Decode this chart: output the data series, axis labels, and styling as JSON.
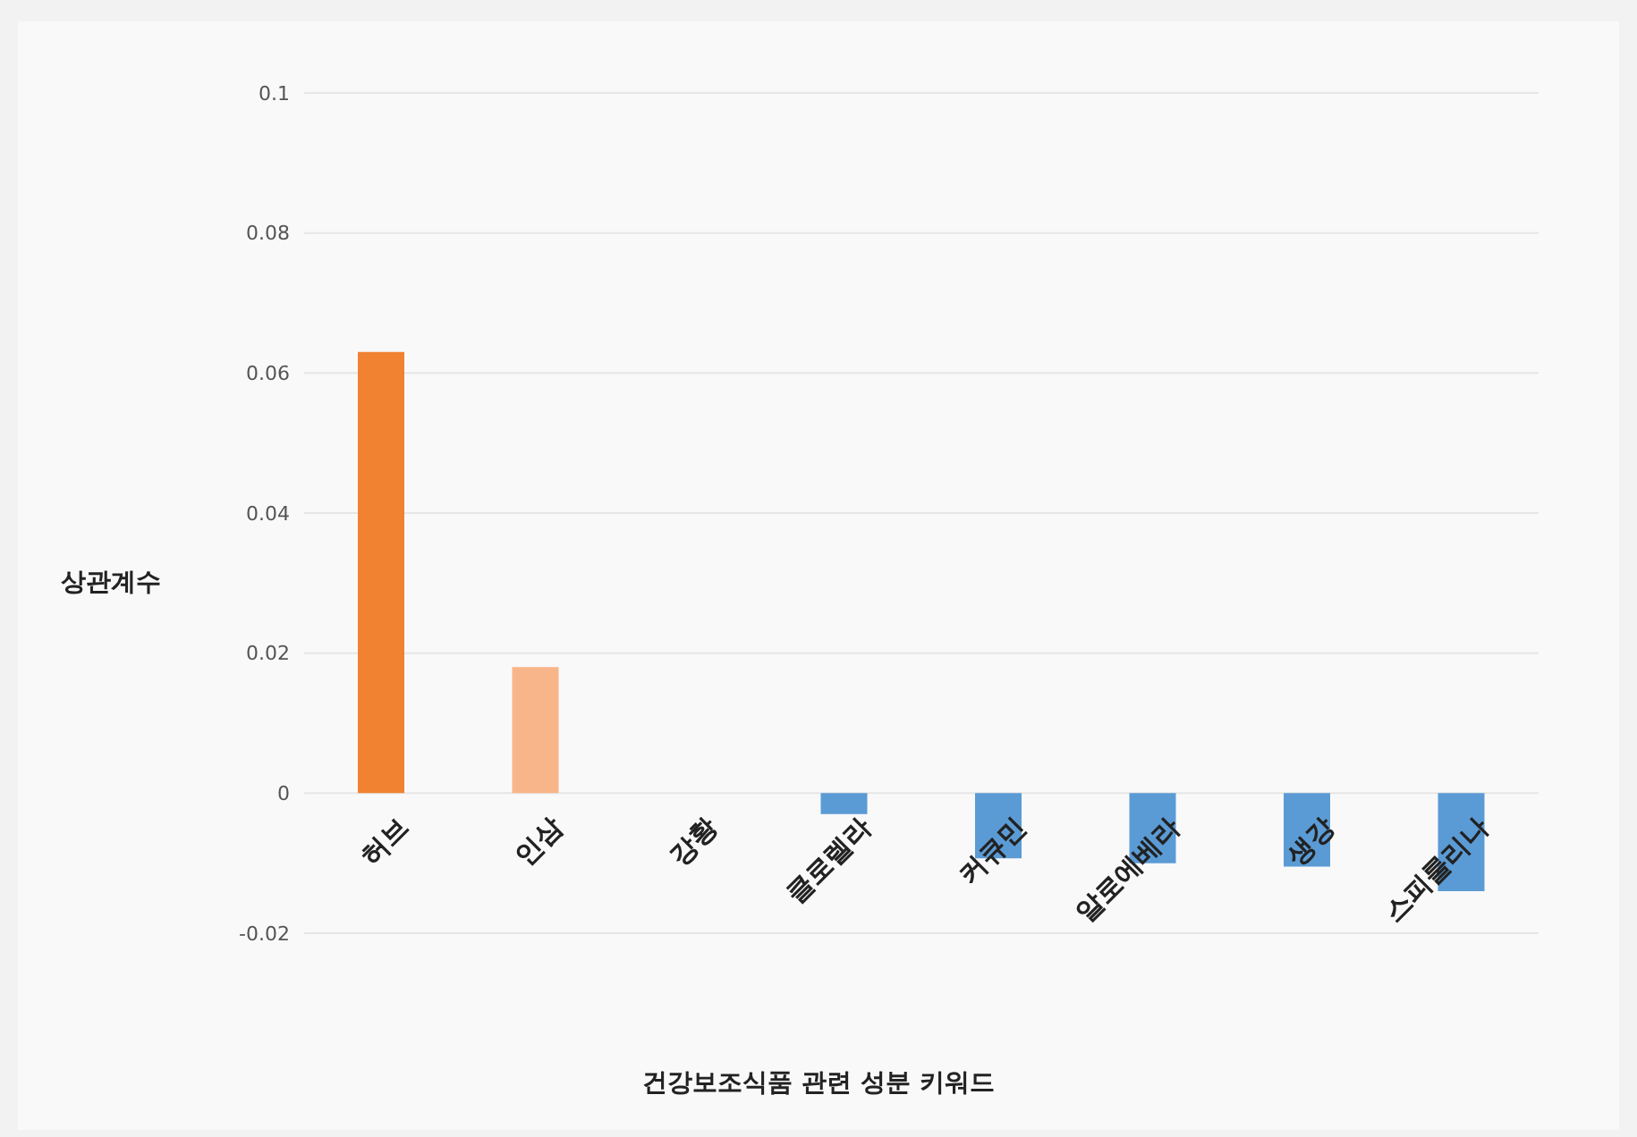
{
  "chart_data": {
    "type": "bar",
    "xlabel": "건강보조식품 관련 성분 키워드",
    "ylabel": "상관계수",
    "categories": [
      "허브",
      "인삼",
      "강황",
      "클로렐라",
      "커큐민",
      "알로에베라",
      "생강",
      "스피룰리나"
    ],
    "values": [
      0.063,
      0.018,
      0,
      -0.003,
      -0.0093,
      -0.01,
      -0.0105,
      -0.014
    ],
    "colors": [
      "#f08232",
      "#f9b58a",
      "#5b9bd5",
      "#5b9bd5",
      "#5b9bd5",
      "#5b9bd5",
      "#5b9bd5",
      "#5b9bd5"
    ],
    "ylim": [
      -0.02,
      0.1
    ],
    "yticks": [
      -0.02,
      0,
      0.02,
      0.04,
      0.06,
      0.08,
      0.1
    ],
    "grid": "y"
  }
}
